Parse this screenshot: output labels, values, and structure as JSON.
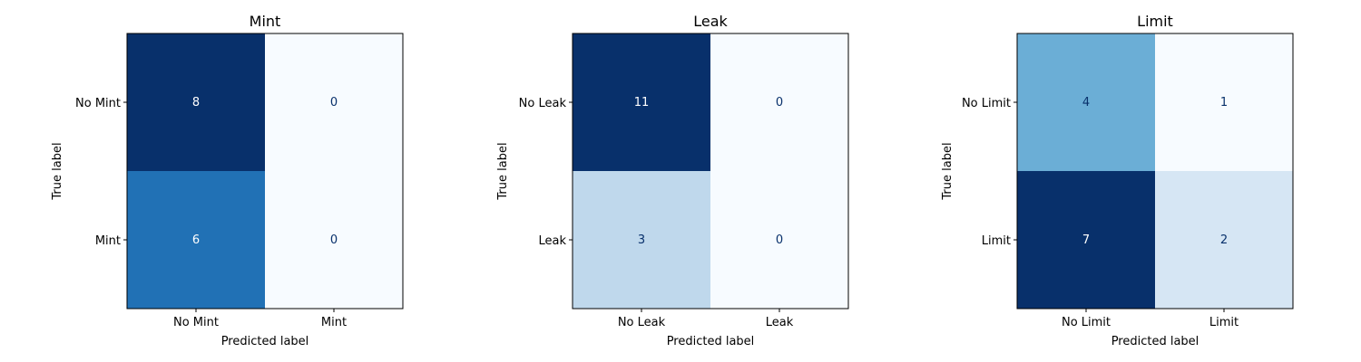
{
  "chart_data": [
    {
      "type": "heatmap",
      "title": "Mint",
      "xlabel": "Predicted label",
      "ylabel": "True label",
      "x_categories": [
        "No Mint",
        "Mint"
      ],
      "y_categories": [
        "No Mint",
        "Mint"
      ],
      "values": [
        [
          8,
          0
        ],
        [
          6,
          0
        ]
      ],
      "colormap": "Blues"
    },
    {
      "type": "heatmap",
      "title": "Leak",
      "xlabel": "Predicted label",
      "ylabel": "True label",
      "x_categories": [
        "No Leak",
        "Leak"
      ],
      "y_categories": [
        "No Leak",
        "Leak"
      ],
      "values": [
        [
          11,
          0
        ],
        [
          3,
          0
        ]
      ],
      "colormap": "Blues"
    },
    {
      "type": "heatmap",
      "title": "Limit",
      "xlabel": "Predicted label",
      "ylabel": "True label",
      "x_categories": [
        "No Limit",
        "Limit"
      ],
      "y_categories": [
        "No Limit",
        "Limit"
      ],
      "values": [
        [
          4,
          1
        ],
        [
          7,
          2
        ]
      ],
      "colormap": "Blues"
    }
  ]
}
